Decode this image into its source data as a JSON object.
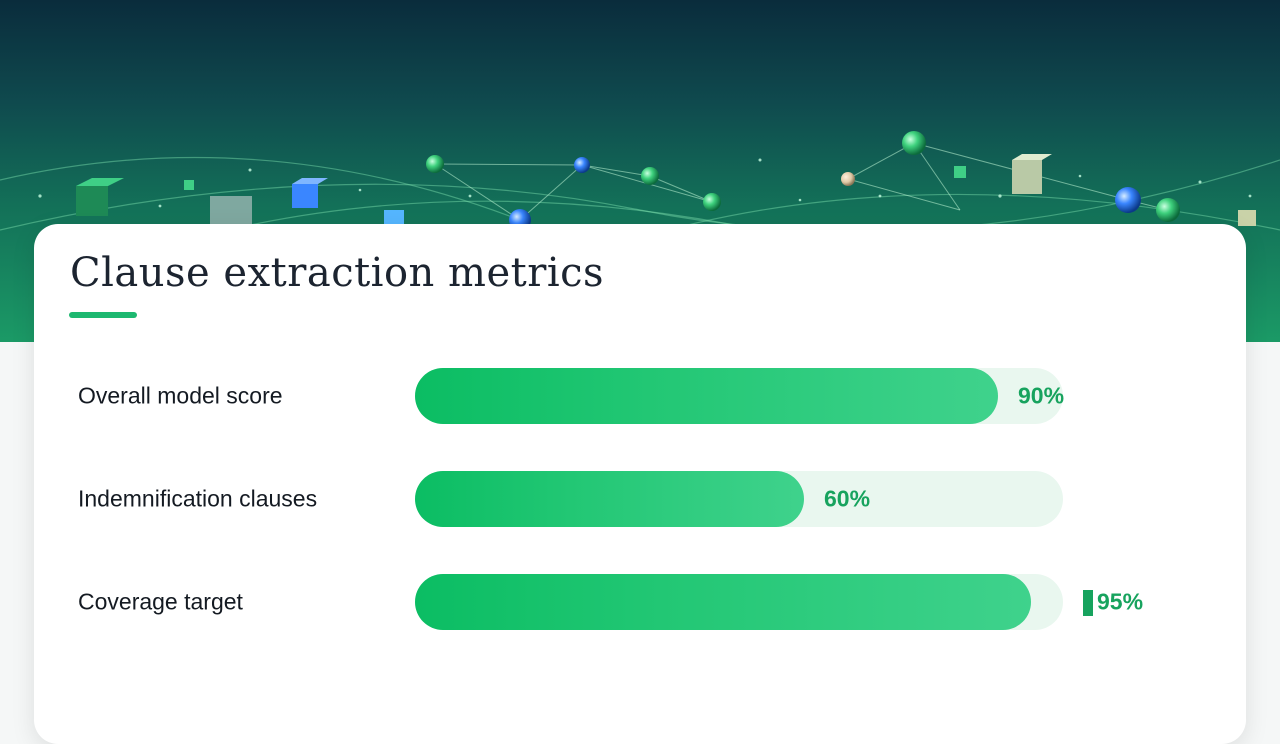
{
  "chart_data": {
    "type": "bar",
    "orientation": "horizontal",
    "title": "Clause extraction metrics",
    "categories": [
      "Overall model score",
      "Indemnification clauses",
      "Coverage target"
    ],
    "values": [
      90,
      60,
      95
    ],
    "value_labels": [
      "90%",
      "60%",
      "95%"
    ],
    "unit": "%",
    "xlim": [
      0,
      100
    ],
    "grid": false,
    "legend": "none",
    "colors": {
      "bar": "#1fc472",
      "track": "#e9f7ef",
      "value_text": "#17a35e",
      "accent": "#1db870"
    }
  }
}
